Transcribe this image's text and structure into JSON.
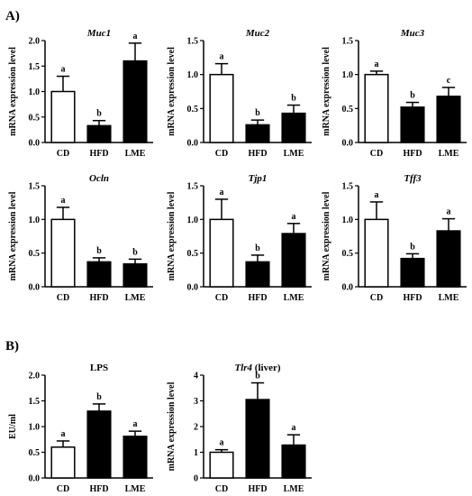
{
  "panel_labels": [
    "A)",
    "B)"
  ],
  "chart_data": [
    {
      "type": "bar",
      "title": "Muc1",
      "title_italic": true,
      "ylabel": "mRNA expression level",
      "xlabel": "",
      "categories": [
        "CD",
        "HFD",
        "LME"
      ],
      "values": [
        1.0,
        0.33,
        1.6
      ],
      "errors": [
        0.3,
        0.1,
        0.35
      ],
      "sig_letters": [
        "a",
        "b",
        "a"
      ],
      "bar_fill": [
        "#ffffff",
        "#000000",
        "#000000"
      ],
      "ylim": [
        0,
        2.0
      ],
      "yticks": [
        "0.0",
        "0.5",
        "1.0",
        "1.5",
        "2.0"
      ],
      "grid": false
    },
    {
      "type": "bar",
      "title": "Muc2",
      "title_italic": true,
      "ylabel": "mRNA expression level",
      "xlabel": "",
      "categories": [
        "CD",
        "HFD",
        "LME"
      ],
      "values": [
        1.0,
        0.26,
        0.43
      ],
      "errors": [
        0.16,
        0.07,
        0.12
      ],
      "sig_letters": [
        "a",
        "b",
        "b"
      ],
      "bar_fill": [
        "#ffffff",
        "#000000",
        "#000000"
      ],
      "ylim": [
        0,
        1.5
      ],
      "yticks": [
        "0.0",
        "0.5",
        "1.0",
        "1.5"
      ],
      "grid": false
    },
    {
      "type": "bar",
      "title": "Muc3",
      "title_italic": true,
      "ylabel": "mRNA expression level",
      "xlabel": "",
      "categories": [
        "CD",
        "HFD",
        "LME"
      ],
      "values": [
        1.0,
        0.52,
        0.68
      ],
      "errors": [
        0.05,
        0.07,
        0.13
      ],
      "sig_letters": [
        "a",
        "b",
        "c"
      ],
      "bar_fill": [
        "#ffffff",
        "#000000",
        "#000000"
      ],
      "ylim": [
        0,
        1.5
      ],
      "yticks": [
        "0.0",
        "0.5",
        "1.0",
        "1.5"
      ],
      "grid": false
    },
    {
      "type": "bar",
      "title": "Ocln",
      "title_italic": true,
      "ylabel": "mRNA expression level",
      "xlabel": "",
      "categories": [
        "CD",
        "HFD",
        "LME"
      ],
      "values": [
        1.0,
        0.37,
        0.34
      ],
      "errors": [
        0.18,
        0.06,
        0.07
      ],
      "sig_letters": [
        "a",
        "b",
        "b"
      ],
      "bar_fill": [
        "#ffffff",
        "#000000",
        "#000000"
      ],
      "ylim": [
        0,
        1.5
      ],
      "yticks": [
        "0.0",
        "0.5",
        "1.0",
        "1.5"
      ],
      "grid": false
    },
    {
      "type": "bar",
      "title": "Tjp1",
      "title_italic": true,
      "ylabel": "mRNA expression level",
      "xlabel": "",
      "categories": [
        "CD",
        "HFD",
        "LME"
      ],
      "values": [
        1.0,
        0.37,
        0.79
      ],
      "errors": [
        0.3,
        0.1,
        0.15
      ],
      "sig_letters": [
        "a",
        "b",
        "a"
      ],
      "bar_fill": [
        "#ffffff",
        "#000000",
        "#000000"
      ],
      "ylim": [
        0,
        1.5
      ],
      "yticks": [
        "0.0",
        "0.5",
        "1.0",
        "1.5"
      ],
      "grid": false
    },
    {
      "type": "bar",
      "title": "Tff3",
      "title_italic": true,
      "ylabel": "mRNA expression level",
      "xlabel": "",
      "categories": [
        "CD",
        "HFD",
        "LME"
      ],
      "values": [
        1.0,
        0.42,
        0.83
      ],
      "errors": [
        0.26,
        0.07,
        0.18
      ],
      "sig_letters": [
        "a",
        "b",
        "a"
      ],
      "bar_fill": [
        "#ffffff",
        "#000000",
        "#000000"
      ],
      "ylim": [
        0,
        1.5
      ],
      "yticks": [
        "0.0",
        "0.5",
        "1.0",
        "1.5"
      ],
      "grid": false
    },
    {
      "type": "bar",
      "title": "LPS",
      "title_italic": false,
      "ylabel": "EU/ml",
      "xlabel": "",
      "categories": [
        "CD",
        "HFD",
        "LME"
      ],
      "values": [
        0.6,
        1.3,
        0.81
      ],
      "errors": [
        0.12,
        0.14,
        0.1
      ],
      "sig_letters": [
        "a",
        "b",
        "a"
      ],
      "bar_fill": [
        "#ffffff",
        "#000000",
        "#000000"
      ],
      "ylim": [
        0,
        2.0
      ],
      "yticks": [
        "0.0",
        "0.5",
        "1.0",
        "1.5",
        "2.0"
      ],
      "grid": false
    },
    {
      "type": "bar",
      "title": "Tlr4",
      "title_suffix": " (liver)",
      "title_italic": true,
      "ylabel": "mRNA expression level",
      "xlabel": "",
      "categories": [
        "CD",
        "HFD",
        "LME"
      ],
      "values": [
        1.0,
        3.05,
        1.28
      ],
      "errors": [
        0.1,
        0.65,
        0.4
      ],
      "sig_letters": [
        "a",
        "b",
        "a"
      ],
      "bar_fill": [
        "#ffffff",
        "#000000",
        "#000000"
      ],
      "ylim": [
        0,
        4
      ],
      "yticks": [
        "0",
        "1",
        "2",
        "3",
        "4"
      ],
      "grid": false
    }
  ]
}
